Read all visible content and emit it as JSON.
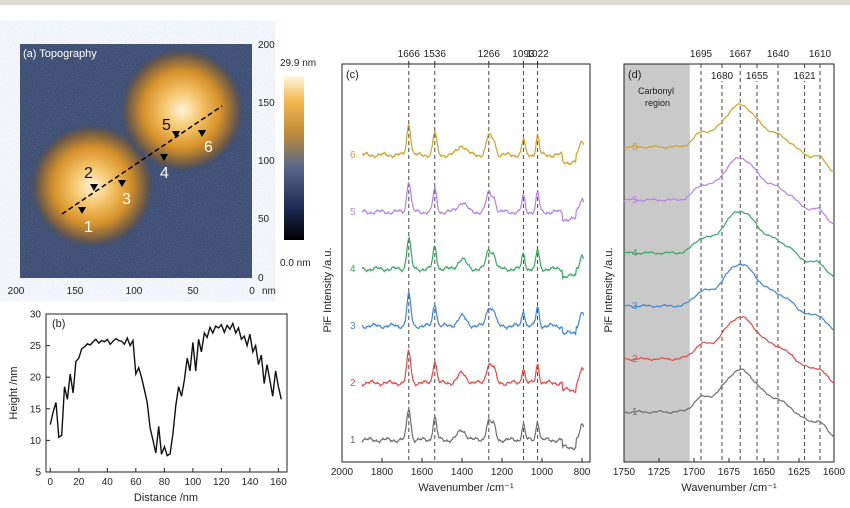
{
  "panel_a": {
    "title": "(a) Topography",
    "colorbar": {
      "max_label": "29.9 nm",
      "min_label": "0.0 nm",
      "max_nm": 29.9,
      "min_nm": 0.0
    },
    "x_ticks": [
      "200",
      "150",
      "100",
      "50",
      "0"
    ],
    "x_unit": "nm",
    "y_ticks": [
      "200",
      "150",
      "100",
      "50",
      "0"
    ],
    "points": [
      "1",
      "2",
      "3",
      "4",
      "5",
      "6"
    ]
  },
  "chart_data": [
    {
      "id": "b",
      "type": "line",
      "panel_label": "(b)",
      "xlabel": "Distance /nm",
      "ylabel": "Height /nm",
      "xlim": [
        -3,
        166
      ],
      "ylim": [
        5,
        30
      ],
      "x_ticks": [
        "0",
        "20",
        "40",
        "60",
        "80",
        "100",
        "120",
        "140",
        "160"
      ],
      "y_ticks": [
        "5",
        "10",
        "15",
        "20",
        "25",
        "30"
      ],
      "series": [
        {
          "x": [
            0,
            2,
            4,
            6,
            8,
            10,
            12,
            14,
            16,
            18,
            20,
            22,
            24,
            26,
            28,
            30,
            32,
            34,
            36,
            38,
            40,
            42,
            44,
            46,
            48,
            50,
            52,
            54,
            56,
            58,
            60,
            62,
            64,
            66,
            68,
            70,
            72,
            74,
            76,
            78,
            80,
            82,
            84,
            86,
            88,
            90,
            92,
            94,
            96,
            98,
            100,
            102,
            104,
            106,
            108,
            110,
            112,
            114,
            116,
            118,
            120,
            122,
            124,
            126,
            128,
            130,
            132,
            134,
            136,
            138,
            140,
            142,
            144,
            146,
            148,
            150,
            152,
            154,
            156,
            158,
            160,
            162
          ],
          "values": [
            12.5,
            14.5,
            16,
            10.5,
            10.8,
            18.5,
            16.5,
            20.5,
            17.5,
            22.5,
            23,
            24.5,
            24.8,
            25.3,
            25.1,
            25.6,
            26,
            25.4,
            25.8,
            25.6,
            26,
            25.2,
            25.7,
            26.1,
            25.8,
            25.7,
            25.2,
            26.2,
            25,
            25.8,
            20.5,
            21.5,
            20,
            18,
            16,
            12,
            10,
            8,
            12.2,
            7.8,
            9,
            7.6,
            7.9,
            11,
            15.5,
            18.5,
            17,
            19.5,
            23,
            21,
            25.5,
            21,
            26,
            24,
            27,
            26.3,
            27.9,
            27,
            28.1,
            27.8,
            28.3,
            27.1,
            28.2,
            27.6,
            28.5,
            27,
            27.8,
            26,
            26.5,
            25,
            26.8,
            24,
            25,
            22,
            23.5,
            19,
            22,
            19.5,
            17,
            21,
            18.5,
            16.5
          ]
        }
      ]
    },
    {
      "id": "c",
      "type": "line",
      "panel_label": "(c)",
      "xlabel": "Wavenumber /cm⁻¹",
      "ylabel": "PiF Intensity /a.u.",
      "xlim": [
        2000,
        760
      ],
      "x_ticks": [
        2000,
        1800,
        1600,
        1400,
        1200,
        1000,
        800
      ],
      "peak_lines": [
        1666,
        1536,
        1266,
        1093,
        1022
      ],
      "peak_labels": [
        "1666",
        "1536",
        "1266",
        "1093",
        "1022"
      ],
      "series": [
        {
          "name": "1",
          "color": "#6e6e6e",
          "offset": 0
        },
        {
          "name": "2",
          "color": "#e64a46",
          "offset": 1
        },
        {
          "name": "3",
          "color": "#3f86d8",
          "offset": 2
        },
        {
          "name": "4",
          "color": "#37a860",
          "offset": 3
        },
        {
          "name": "5",
          "color": "#b681e8",
          "offset": 4
        },
        {
          "name": "6",
          "color": "#d1a12a",
          "offset": 5
        }
      ]
    },
    {
      "id": "d",
      "type": "line",
      "panel_label": "(d)",
      "xlabel": "Wavenumber /cm⁻¹",
      "ylabel": "PiF Intensity /a.u.",
      "xlim": [
        1750,
        1600
      ],
      "x_ticks": [
        1750,
        1725,
        1700,
        1675,
        1650,
        1625,
        1600
      ],
      "shaded_region": {
        "label": "Carbonyl region",
        "from": 1750,
        "to": 1703
      },
      "peak_lines": [
        1695,
        1680,
        1667,
        1655,
        1640,
        1621,
        1610
      ],
      "peak_labels_top": [
        "1695",
        "1667",
        "1640",
        "1610"
      ],
      "peak_labels_second": [
        "1680",
        "1655",
        "1621"
      ],
      "series": [
        {
          "name": "1",
          "color": "#6e6e6e",
          "offset": 0
        },
        {
          "name": "2",
          "color": "#e64a46",
          "offset": 1
        },
        {
          "name": "3",
          "color": "#3f86d8",
          "offset": 2
        },
        {
          "name": "4",
          "color": "#37a860",
          "offset": 3
        },
        {
          "name": "5",
          "color": "#b681e8",
          "offset": 4
        },
        {
          "name": "6",
          "color": "#d1a12a",
          "offset": 5
        }
      ]
    }
  ]
}
